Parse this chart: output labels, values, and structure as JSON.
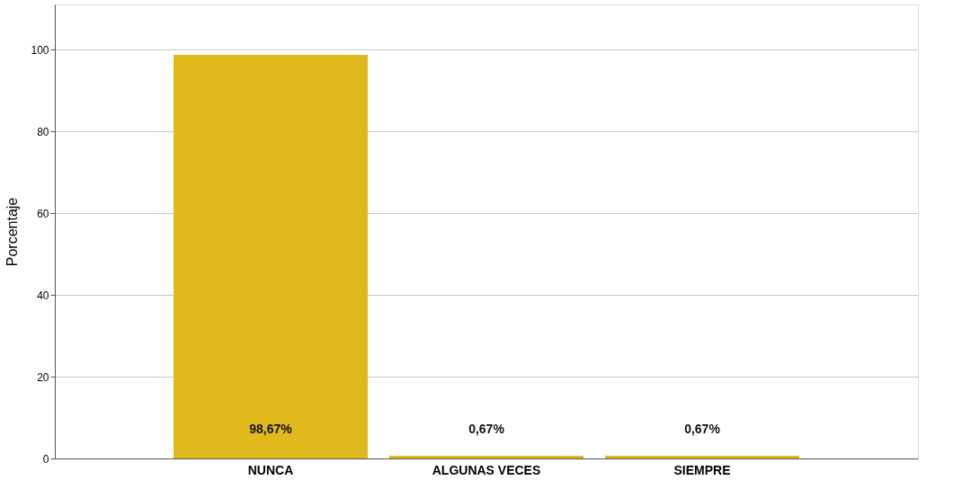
{
  "chart_data": {
    "type": "bar",
    "ylabel": "Porcentaje",
    "categories": [
      "NUNCA",
      "ALGUNAS VECES",
      "SIEMPRE"
    ],
    "values": [
      98.67,
      0.67,
      0.67
    ],
    "value_labels": [
      "98,67%",
      "0,67%",
      "0,67%"
    ],
    "color": "#e0b91c",
    "ylim": [
      0,
      111
    ],
    "yticks": [
      0,
      20,
      40,
      60,
      80,
      100
    ],
    "grid": "y"
  }
}
